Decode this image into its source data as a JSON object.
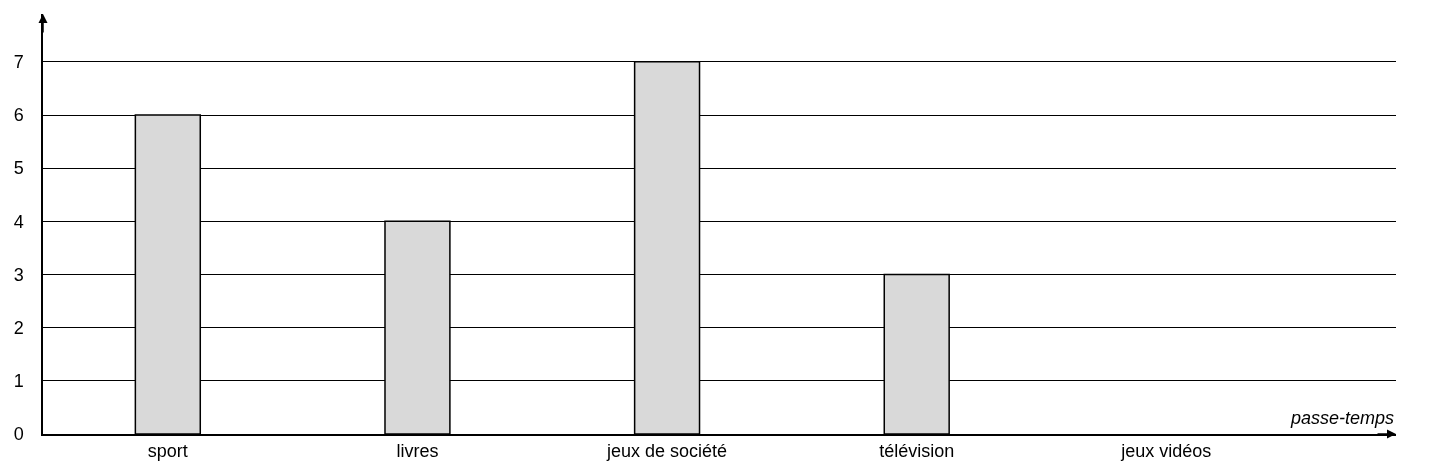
{
  "chart_data": {
    "type": "bar",
    "xlabel": "passe-temps",
    "categories": [
      "sport",
      "livres",
      "jeux de société",
      "télévision",
      "jeux vidéos"
    ],
    "values": [
      6,
      4,
      7,
      3,
      0
    ],
    "color": "#d9d9d9",
    "ylim": [
      0,
      7.9
    ],
    "yticks": [
      0,
      1,
      2,
      3,
      4,
      5,
      6,
      7
    ],
    "grid": "y"
  }
}
